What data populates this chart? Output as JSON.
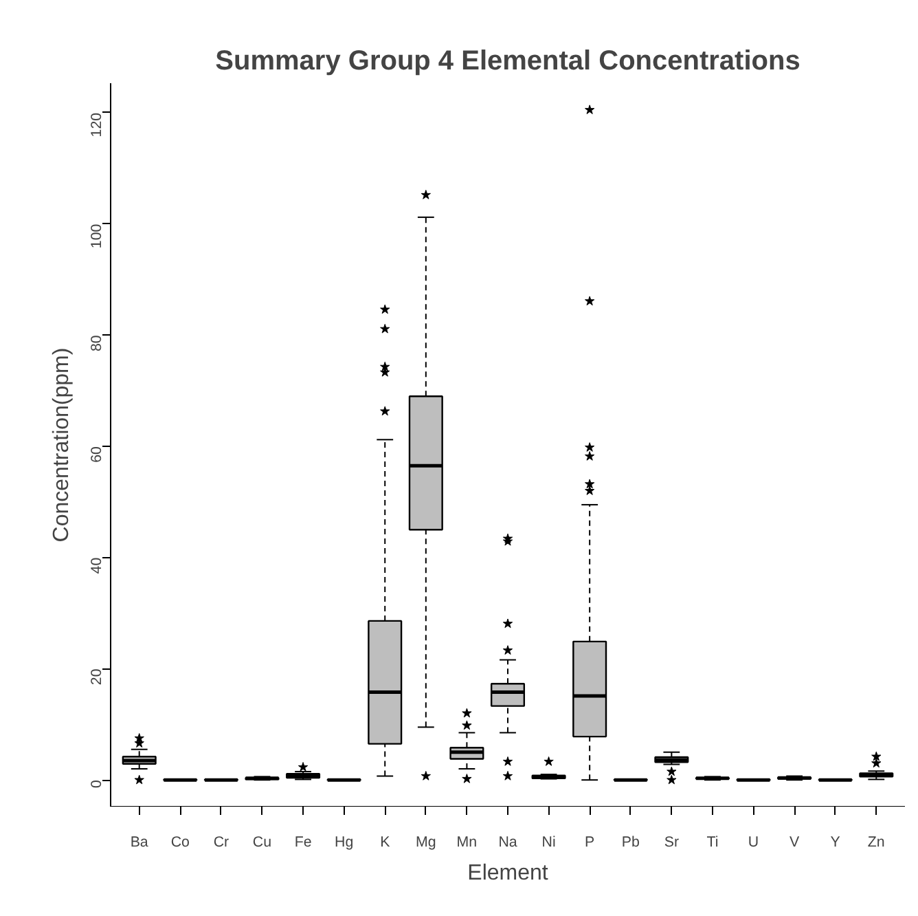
{
  "chart_data": {
    "type": "box",
    "title": "Summary Group 4 Elemental Concentrations",
    "xlabel": "Element",
    "ylabel": "Concentration(ppm)",
    "categories": [
      "Ba",
      "Co",
      "Cr",
      "Cu",
      "Fe",
      "Hg",
      "K",
      "Mg",
      "Mn",
      "Na",
      "Ni",
      "P",
      "Pb",
      "Sr",
      "Ti",
      "U",
      "V",
      "Y",
      "Zn"
    ],
    "color": "#bebebe",
    "marker": "star",
    "grid": false,
    "ylim": [
      -4.8,
      125.3
    ],
    "yticks": [
      0,
      20,
      40,
      60,
      80,
      100,
      120
    ],
    "boxes": [
      {
        "low": 2,
        "q1": 2.9,
        "median": 3.5,
        "q3": 4.2,
        "high": 5.5,
        "outliers": [
          7.5,
          6.6,
          0
        ]
      },
      {
        "low": 0,
        "q1": 0,
        "median": 0,
        "q3": 0.1,
        "high": 0.1
      },
      {
        "low": 0,
        "q1": 0,
        "median": 0,
        "q3": 0.1,
        "high": 0.1
      },
      {
        "low": 0,
        "q1": 0.1,
        "median": 0.3,
        "q3": 0.4,
        "high": 0.6
      },
      {
        "low": 0.1,
        "q1": 0.4,
        "median": 0.7,
        "q3": 1.1,
        "high": 1.5,
        "outliers": [
          2.3
        ]
      },
      {
        "low": 0,
        "q1": 0,
        "median": 0,
        "q3": 0.1,
        "high": 0.1
      },
      {
        "low": 0.7,
        "q1": 6.5,
        "median": 15.8,
        "q3": 28.6,
        "high": 61.2,
        "outliers": [
          84.6,
          81.1,
          74.3,
          73.3,
          66.3
        ]
      },
      {
        "low": 9.5,
        "q1": 45,
        "median": 56.5,
        "q3": 69,
        "high": 101.2,
        "outliers": [
          105.2,
          0.7
        ]
      },
      {
        "low": 2,
        "q1": 3.8,
        "median": 5,
        "q3": 5.8,
        "high": 8.5,
        "outliers": [
          12,
          9.8,
          0.2
        ]
      },
      {
        "low": 8.5,
        "q1": 13.3,
        "median": 15.8,
        "q3": 17.3,
        "high": 21.6,
        "outliers": [
          43.4,
          42.9,
          28.1,
          23.3,
          3.3,
          0.7
        ]
      },
      {
        "low": 0.2,
        "q1": 0.3,
        "median": 0.5,
        "q3": 0.8,
        "high": 1,
        "outliers": [
          3.3
        ]
      },
      {
        "low": 0,
        "q1": 7.8,
        "median": 15.1,
        "q3": 24.9,
        "high": 49.5,
        "outliers": [
          120.5,
          86.1,
          59.8,
          58.2,
          53.2,
          52
        ]
      },
      {
        "low": 0,
        "q1": 0,
        "median": 0,
        "q3": 0.1,
        "high": 0.1
      },
      {
        "low": 2.8,
        "q1": 3.2,
        "median": 3.6,
        "q3": 4.1,
        "high": 5,
        "outliers": [
          1.5,
          0
        ]
      },
      {
        "low": 0,
        "q1": 0.2,
        "median": 0.3,
        "q3": 0.4,
        "high": 0.6
      },
      {
        "low": 0,
        "q1": 0,
        "median": 0,
        "q3": 0.1,
        "high": 0.1
      },
      {
        "low": 0,
        "q1": 0.2,
        "median": 0.35,
        "q3": 0.5,
        "high": 0.7
      },
      {
        "low": 0,
        "q1": 0,
        "median": 0,
        "q3": 0.1,
        "high": 0.1
      },
      {
        "low": 0.1,
        "q1": 0.6,
        "median": 0.9,
        "q3": 1.2,
        "high": 1.6,
        "outliers": [
          4.2,
          3
        ]
      }
    ]
  }
}
